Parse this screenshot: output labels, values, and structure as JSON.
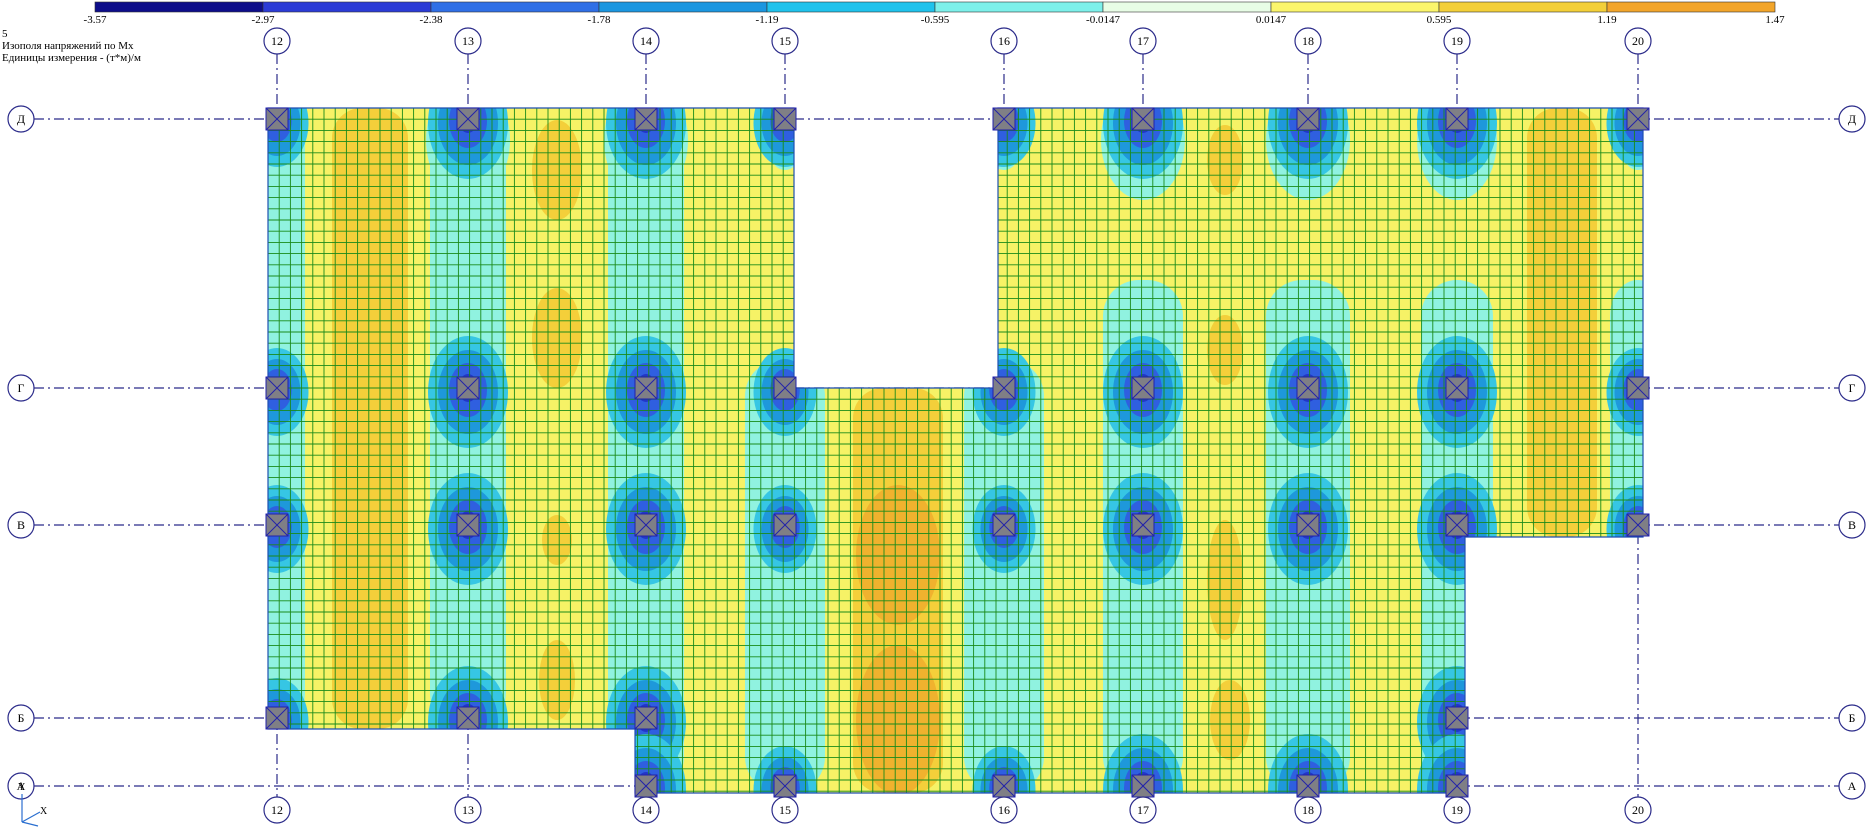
{
  "header": {
    "line1": "5",
    "line2": "Изополя напряжений по Mx",
    "line3": "Единицы измерения - (т*м)/м"
  },
  "legend": {
    "ticks": [
      "-3.57",
      "-2.97",
      "-2.38",
      "-1.78",
      "-1.19",
      "-0.595",
      "-0.0147",
      "0.0147",
      "0.595",
      "1.19",
      "1.47"
    ],
    "colors": [
      "#0d0d8a",
      "#2b3bd6",
      "#2f6fe6",
      "#1a96e0",
      "#1fc2ec",
      "#7df0ea",
      "#e8fde6",
      "#fbf56c",
      "#f3cf38",
      "#f2a52a"
    ]
  },
  "axes": {
    "vertical": [
      "12",
      "13",
      "14",
      "15",
      "16",
      "17",
      "18",
      "19",
      "20"
    ],
    "horizontal": [
      "Д",
      "Г",
      "В",
      "Б",
      "А"
    ]
  },
  "coord_system": {
    "y_label": "Y",
    "x_label": "X"
  },
  "palette": {
    "positive_high": "#f0b22e",
    "positive": "#f4cf3a",
    "positive_low": "#f6f266",
    "near_zero": "#90f2e0",
    "neg_low": "#36c6e4",
    "neg_mid": "#1e98db",
    "neg_high": "#2f5fe0",
    "neg_max": "#2236c8",
    "mesh": "#1a8a1a",
    "axis": "#2b2b8a"
  },
  "icons": [
    "column-x-icon",
    "axis-bubble-icon",
    "coord-system-icon"
  ]
}
